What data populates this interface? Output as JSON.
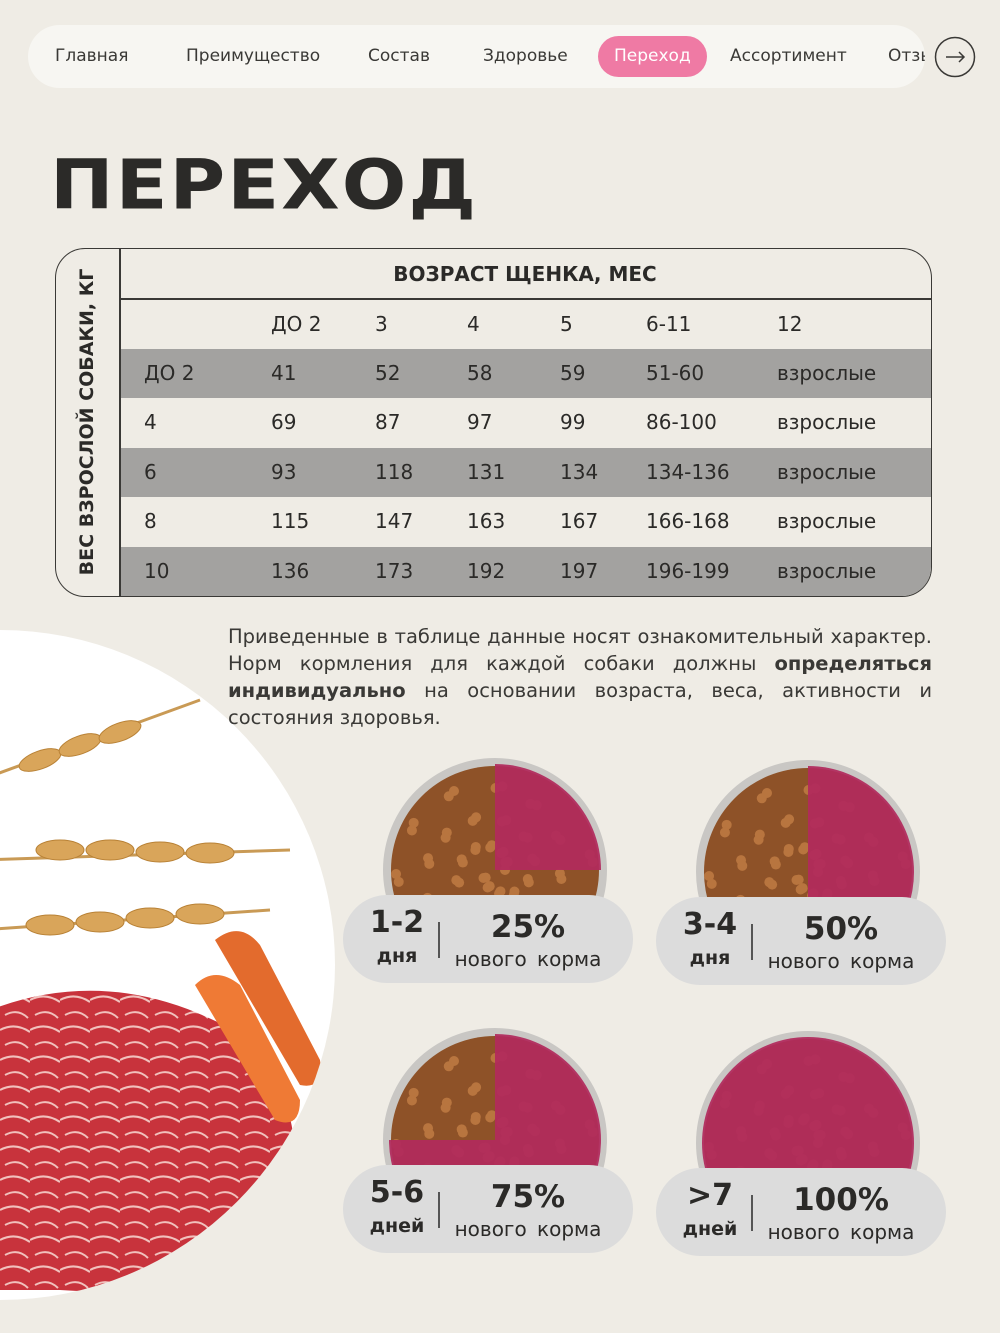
{
  "nav": {
    "items": [
      "Главная",
      "Преимущество",
      "Состав",
      "Здоровье",
      "Переход",
      "Ассортимент",
      "Отзывы"
    ],
    "active": 4
  },
  "title": "ПЕРЕХОД",
  "table": {
    "row_axis": "ВЕС ВЗРОСЛОЙ СОБАКИ, КГ",
    "column_axis": "ВОЗРАСТ ЩЕНКА, МЕС",
    "columns": [
      "ДО 2",
      "3",
      "4",
      "5",
      "6-11",
      "12"
    ],
    "rows": [
      {
        "label": "ДО 2",
        "cells": [
          41,
          52,
          58,
          59,
          "51-60",
          "взрослые"
        ]
      },
      {
        "label": "4",
        "cells": [
          69,
          87,
          97,
          99,
          "86-100",
          "взрослые"
        ]
      },
      {
        "label": "6",
        "cells": [
          93,
          118,
          131,
          134,
          "134-136",
          "взрослые"
        ]
      },
      {
        "label": "8",
        "cells": [
          115,
          147,
          163,
          167,
          "166-168",
          "взрослые"
        ]
      },
      {
        "label": "10",
        "cells": [
          136,
          173,
          192,
          197,
          "196-199",
          "взрослые"
        ]
      }
    ]
  },
  "note": {
    "text_start": "Приведенные в таблице данные носят ознакомительный характер. Норм кормления для каждой собаки должны ",
    "text_bold": "определяться индивидуально",
    "text_end": " на основании возраста, веса, активности и состояния здоровья."
  },
  "stages": [
    {
      "period": "1-2",
      "unit": "дня",
      "share": "25%",
      "caption": "нового корма"
    },
    {
      "period": "3-4",
      "unit": "дня",
      "share": "50%",
      "caption": "нового корма"
    },
    {
      "period": "5-6",
      "unit": "дней",
      "share": "75%",
      "caption": "нового корма"
    },
    {
      "period": ">7",
      "unit": "дней",
      "share": "100%",
      "caption": "нового корма"
    }
  ]
}
